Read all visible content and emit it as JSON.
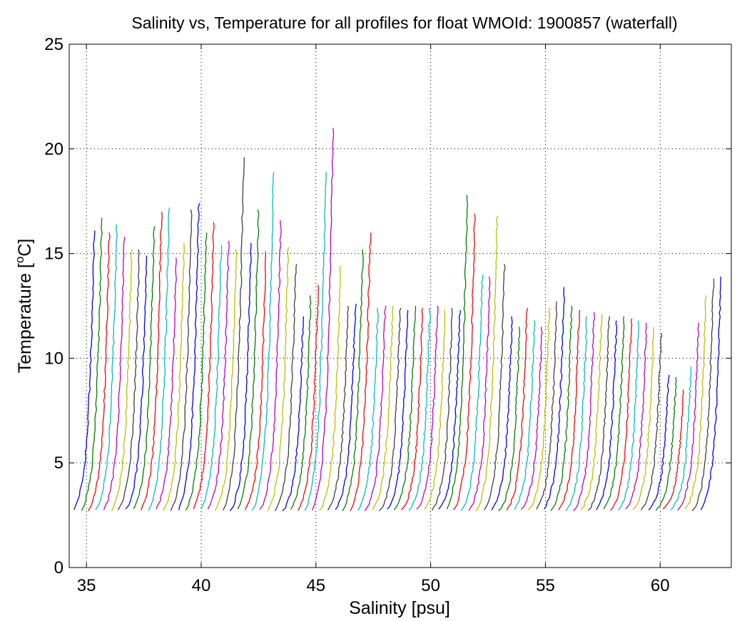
{
  "chart_data": {
    "type": "line",
    "title": "Salinity vs, Temperature for all profiles for float WMOId: 1900857 (waterfall)",
    "xlabel": "Salinity [psu]",
    "ylabel_main": "Temperature [",
    "ylabel_sup": "o",
    "ylabel_end": "C]",
    "xlim": [
      34.25,
      63.1
    ],
    "ylim": [
      0,
      25
    ],
    "x_ticks": [
      35,
      40,
      45,
      50,
      55,
      60
    ],
    "y_ticks": [
      0,
      5,
      10,
      15,
      20,
      25
    ],
    "grid": true,
    "colors": [
      "#0000ff",
      "#008000",
      "#ff0000",
      "#00bfbf",
      "#bf00bf",
      "#bfbf00",
      "#404040"
    ],
    "profile_count": 85,
    "profile_x_start": 34.8,
    "profile_x_step": 0.325,
    "profile_bottom_temp": 2.7,
    "profile_top_temps": [
      16.1,
      16.7,
      16.0,
      16.4,
      15.8,
      15.2,
      15.2,
      14.9,
      16.3,
      17.0,
      17.2,
      14.8,
      15.5,
      17.1,
      17.4,
      16.0,
      16.5,
      15.4,
      15.6,
      15.2,
      19.6,
      15.5,
      17.1,
      15.1,
      18.9,
      16.6,
      15.3,
      14.5,
      12.0,
      13.0,
      13.5,
      18.9,
      21.0,
      14.4,
      12.5,
      12.6,
      15.2,
      16.0,
      12.4,
      12.5,
      12.5,
      12.4,
      12.3,
      12.5,
      12.4,
      12.4,
      12.5,
      12.3,
      12.4,
      12.3,
      17.8,
      16.9,
      14.0,
      13.9,
      16.8,
      14.5,
      12.0,
      11.5,
      12.4,
      11.8,
      11.5,
      12.4,
      12.7,
      13.4,
      12.5,
      12.3,
      12.0,
      12.2,
      12.1,
      12.0,
      11.8,
      12.0,
      11.9,
      11.8,
      11.7,
      11.5,
      11.2,
      9.2,
      9.1,
      8.5,
      9.6,
      11.7,
      13.0,
      13.8,
      13.9
    ]
  }
}
